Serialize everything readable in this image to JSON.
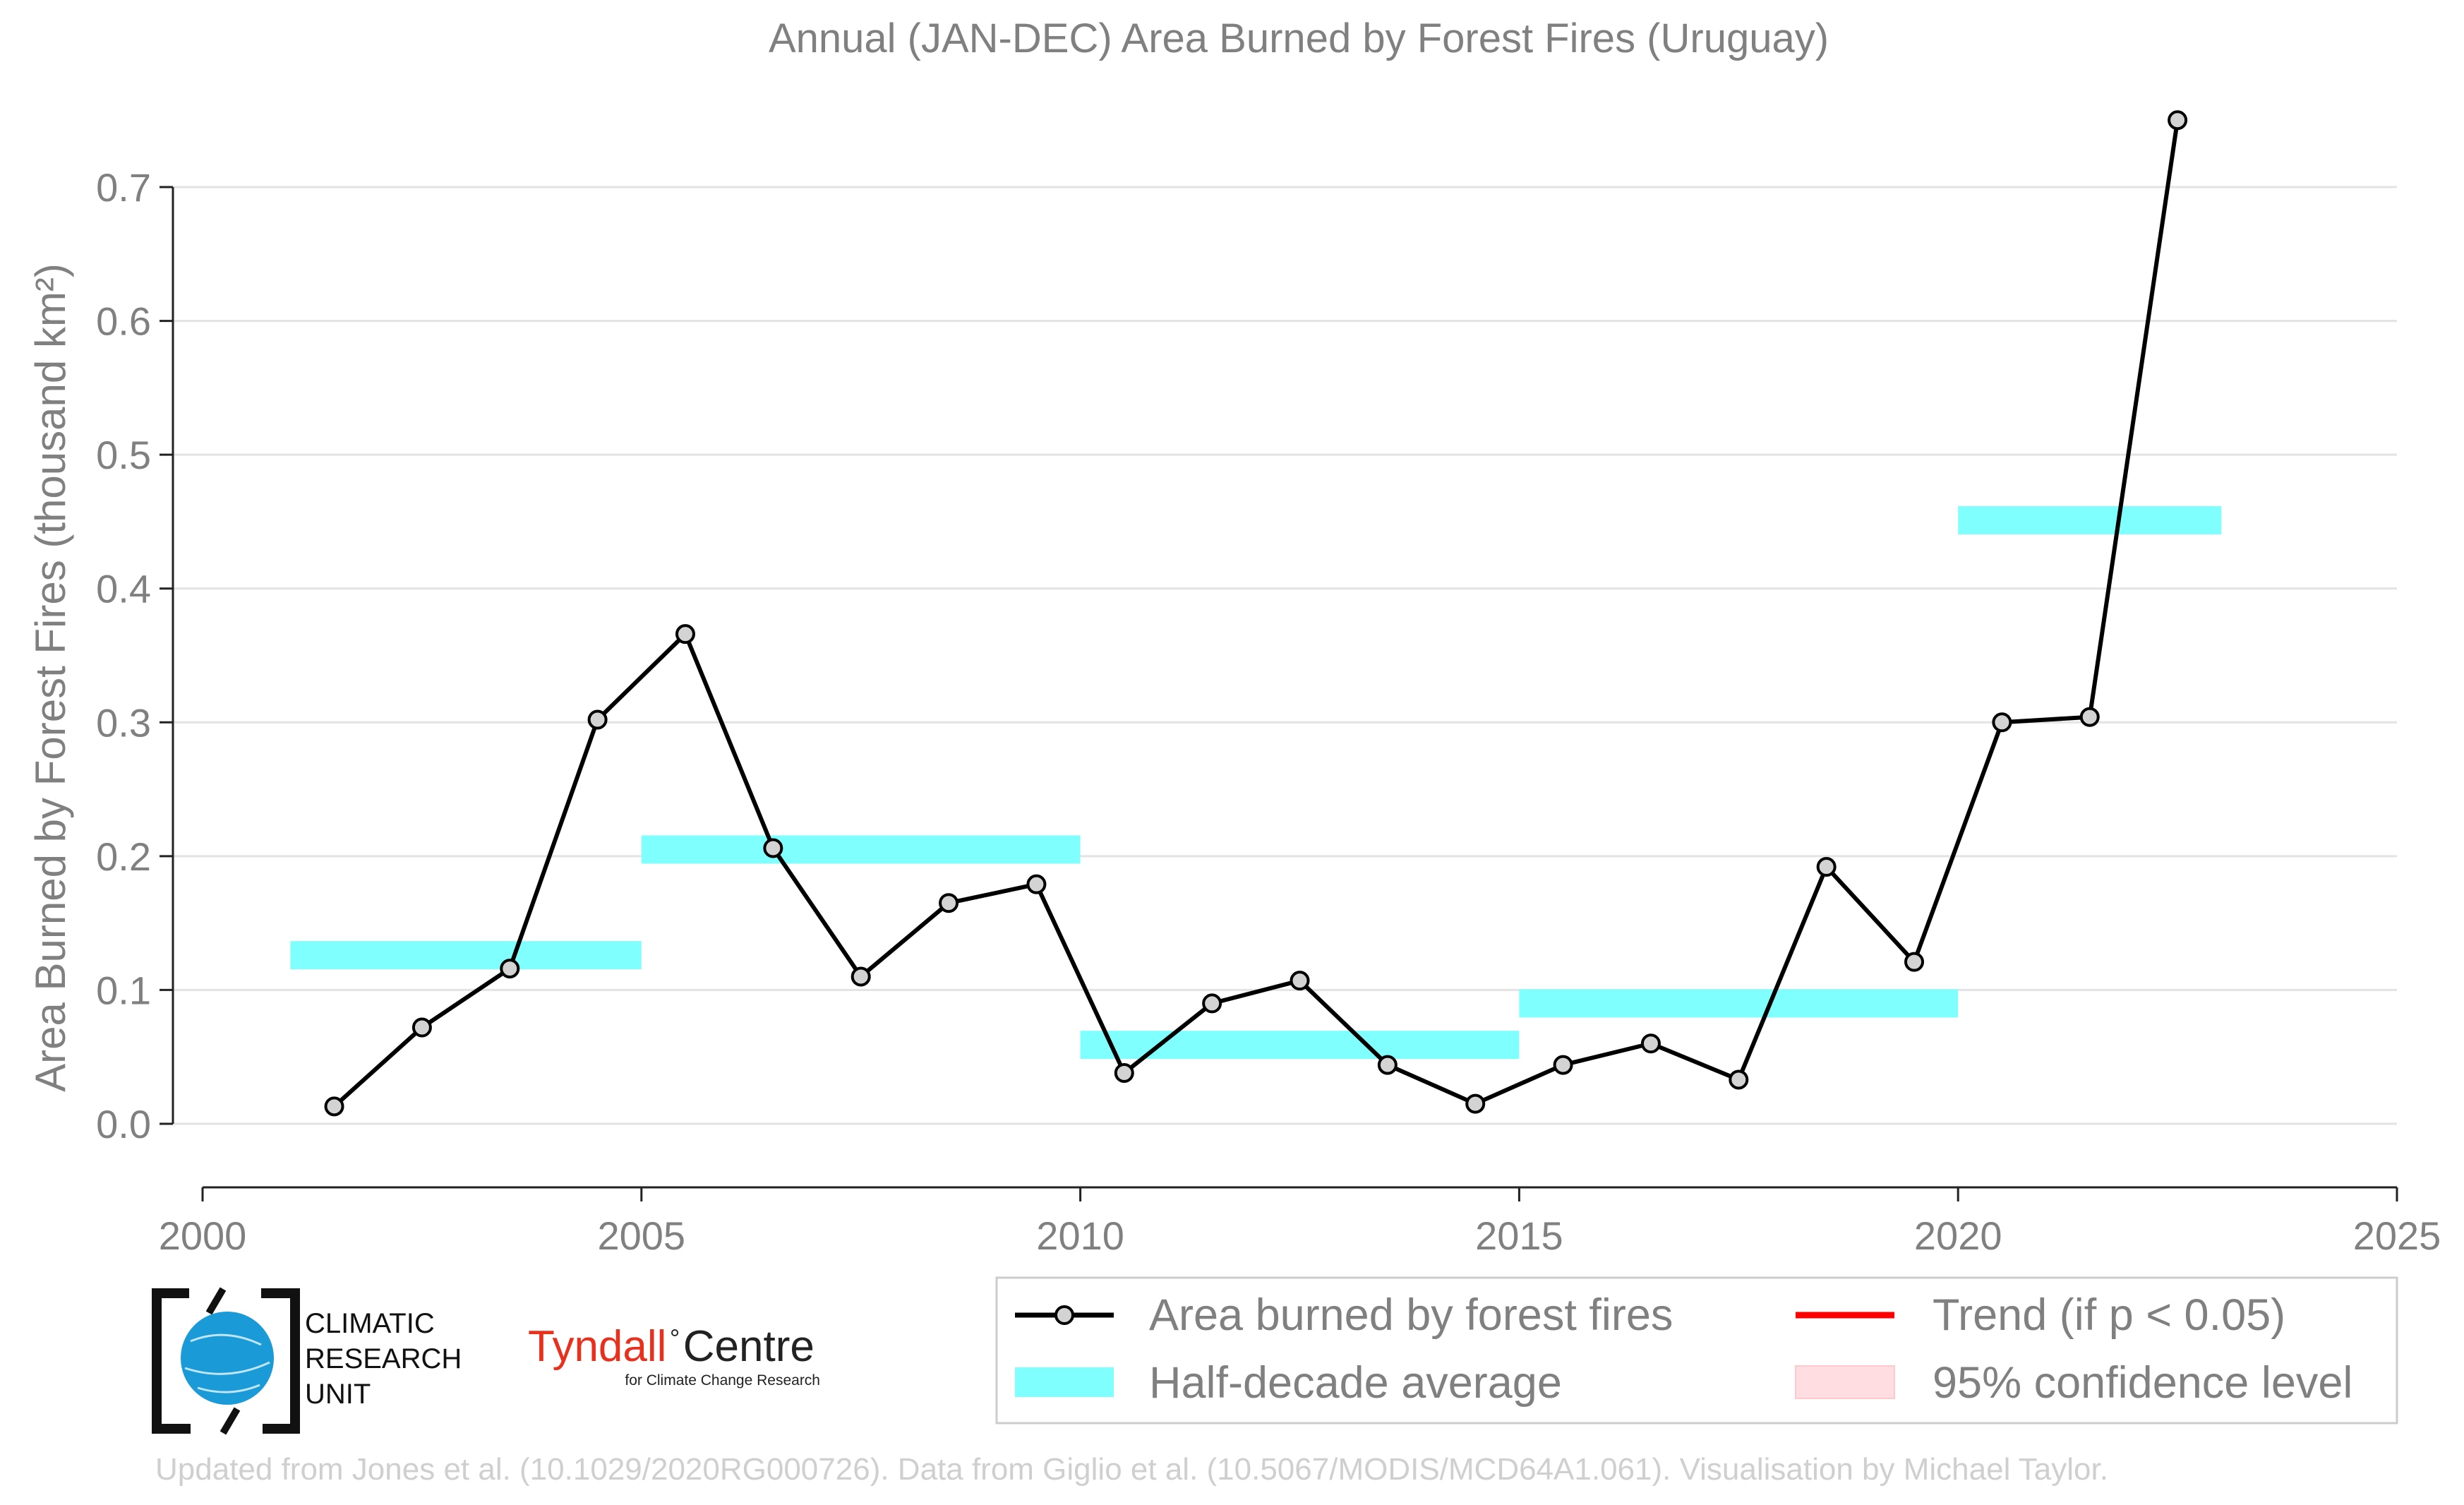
{
  "chart_data": {
    "type": "line",
    "title": "Annual (JAN-DEC) Area Burned by Forest Fires (Uruguay)",
    "xlabel": "",
    "ylabel": "Area Burned by Forest Fires (thousand km²)",
    "xlim": [
      2000,
      2025
    ],
    "ylim": [
      -0.03,
      0.75
    ],
    "x_ticks": [
      "2000",
      "2005",
      "2010",
      "2015",
      "2020",
      "2025"
    ],
    "y_ticks": [
      "0.0",
      "0.1",
      "0.2",
      "0.3",
      "0.4",
      "0.5",
      "0.6",
      "0.7"
    ],
    "grid": "horizontal",
    "legend_position": "bottom-right, below plot",
    "series": [
      {
        "name": "Area burned by forest fires",
        "color": "#000000",
        "marker_fill": "#d3d3d3",
        "x": [
          2001.5,
          2002.5,
          2003.5,
          2004.5,
          2005.5,
          2006.5,
          2007.5,
          2008.5,
          2009.5,
          2010.5,
          2011.5,
          2012.5,
          2013.5,
          2014.5,
          2015.5,
          2016.5,
          2017.5,
          2018.5,
          2019.5,
          2020.5,
          2021.5,
          2022.5
        ],
        "values": [
          0.013,
          0.072,
          0.116,
          0.302,
          0.366,
          0.206,
          0.11,
          0.165,
          0.179,
          0.038,
          0.09,
          0.107,
          0.044,
          0.015,
          0.044,
          0.06,
          0.033,
          0.192,
          0.121,
          0.3,
          0.304,
          0.75
        ]
      },
      {
        "name": "Half-decade average",
        "color": "#80ffff",
        "segments": [
          {
            "x0": 2001,
            "x1": 2005,
            "value": 0.126
          },
          {
            "x0": 2005,
            "x1": 2010,
            "value": 0.205
          },
          {
            "x0": 2010,
            "x1": 2015,
            "value": 0.059
          },
          {
            "x0": 2015,
            "x1": 2020,
            "value": 0.09
          },
          {
            "x0": 2020,
            "x1": 2023,
            "value": 0.451
          }
        ]
      },
      {
        "name": "Trend (if p < 0.05)",
        "color": "#ff0000"
      },
      {
        "name": "95% confidence level",
        "color": "#ffdde0"
      }
    ]
  },
  "logos": {
    "cru": {
      "line1": "CLIMATIC",
      "line2": "RESEARCH",
      "line3": "UNIT",
      "accent": "#1a9ad6"
    },
    "tyndall": {
      "name": "Tyndall",
      "degree": "°",
      "centre": "Centre",
      "tagline": "for Climate Change Research"
    }
  },
  "credit": "Updated from Jones et al. (10.1029/2020RG000726). Data from Giglio et al. (10.5067/MODIS/MCD64A1.061). Visualisation by Michael Taylor."
}
